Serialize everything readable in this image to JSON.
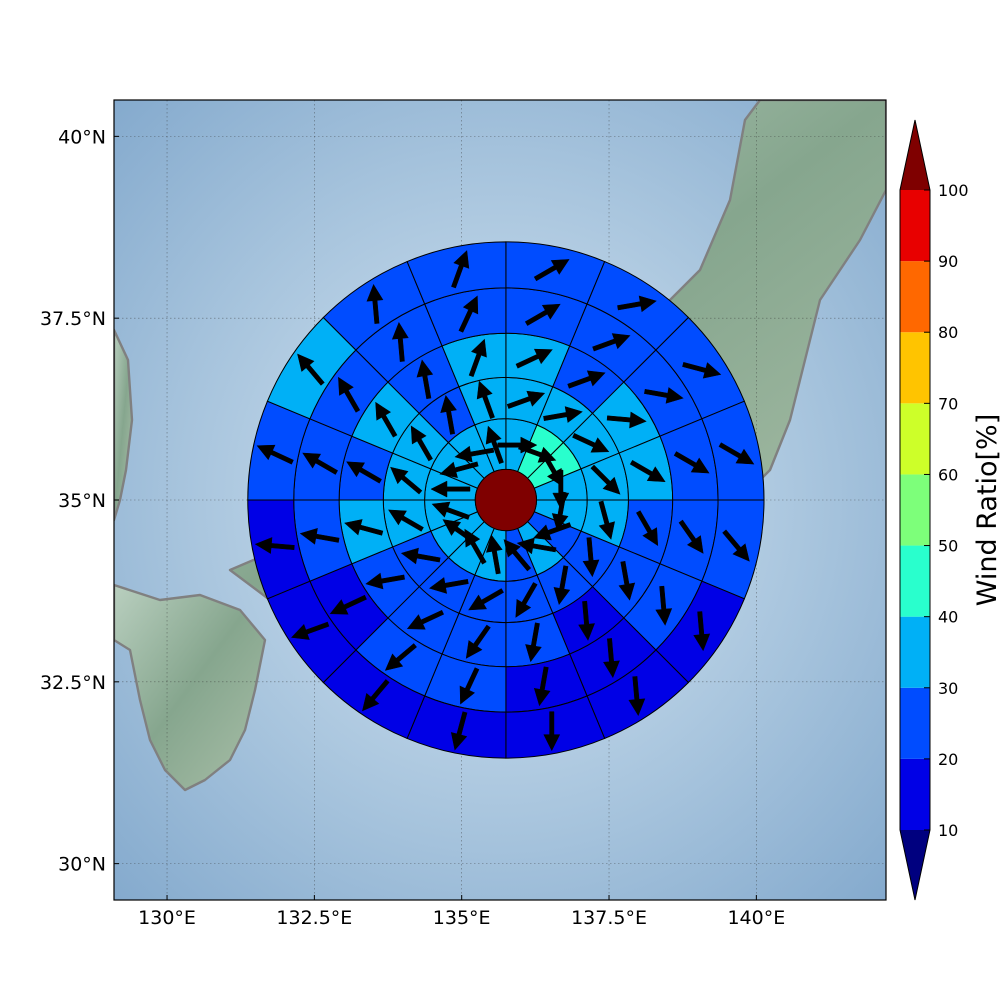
{
  "chart_data": {
    "type": "heatmap",
    "title": "",
    "xlabel": "",
    "ylabel": "",
    "map": {
      "lon_range": [
        129.1,
        142.2
      ],
      "lat_range": [
        29.5,
        40.5
      ],
      "x_ticks": [
        "130°E",
        "132.5°E",
        "135°E",
        "137.5°E",
        "140°E"
      ],
      "x_tick_values": [
        130,
        132.5,
        135,
        137.5,
        140
      ],
      "y_ticks": [
        "30°N",
        "32.5°N",
        "35°N",
        "37.5°N",
        "40°N"
      ],
      "y_tick_values": [
        30,
        32.5,
        35,
        37.5,
        40
      ],
      "grid": true,
      "center": {
        "lon": 135.75,
        "lat": 35.0
      }
    },
    "colorbar": {
      "title": "Wind Ratio[%]",
      "boundaries": [
        10,
        20,
        30,
        40,
        50,
        60,
        70,
        80,
        90,
        100
      ],
      "tick_labels": [
        "10",
        "20",
        "30",
        "40",
        "50",
        "60",
        "70",
        "80",
        "90",
        "100"
      ],
      "colors": [
        "#0000e6",
        "#004cff",
        "#00b0f6",
        "#29ffcd",
        "#7dff7a",
        "#cdff29",
        "#ffc400",
        "#ff6800",
        "#e80000"
      ],
      "under_color": "#00007f",
      "over_color": "#7f0000",
      "extend": "both"
    },
    "rings": {
      "radii_deg": [
        0.52,
        1.38,
        2.08,
        2.83,
        3.6,
        4.38
      ],
      "center_value": 100,
      "sector_count": 16,
      "sector_start_bearing": 0,
      "values": [
        [
          35,
          45,
          45,
          35,
          35,
          25,
          30,
          25,
          30,
          35,
          35,
          35,
          35,
          35,
          30,
          35
        ],
        [
          35,
          30,
          35,
          35,
          35,
          25,
          25,
          25,
          25,
          25,
          25,
          30,
          35,
          30,
          25,
          35
        ],
        [
          35,
          25,
          35,
          35,
          25,
          25,
          15,
          25,
          25,
          25,
          25,
          35,
          25,
          35,
          25,
          35
        ],
        [
          25,
          25,
          25,
          25,
          25,
          25,
          15,
          15,
          25,
          25,
          15,
          25,
          25,
          25,
          25,
          25
        ],
        [
          25,
          25,
          25,
          25,
          25,
          15,
          15,
          15,
          15,
          15,
          15,
          15,
          25,
          35,
          25,
          25
        ]
      ],
      "arrows_bearing_deg": [
        [
          90,
          110,
          150,
          180,
          190,
          250,
          280,
          320,
          350,
          330,
          305,
          290,
          270,
          255,
          260,
          340
        ],
        [
          70,
          80,
          115,
          135,
          165,
          175,
          190,
          210,
          240,
          260,
          280,
          300,
          310,
          330,
          350,
          340
        ],
        [
          65,
          70,
          95,
          120,
          150,
          170,
          175,
          190,
          215,
          245,
          260,
          285,
          300,
          330,
          350,
          20
        ],
        [
          60,
          70,
          100,
          120,
          145,
          175,
          175,
          190,
          205,
          230,
          245,
          280,
          300,
          330,
          355,
          25
        ],
        [
          60,
          80,
          105,
          120,
          140,
          175,
          175,
          180,
          195,
          220,
          250,
          275,
          295,
          320,
          355,
          20
        ],
        [
          60,
          75,
          80,
          110,
          140,
          165,
          170,
          175,
          190,
          225,
          250,
          280,
          300,
          330,
          350,
          15
        ]
      ]
    }
  }
}
